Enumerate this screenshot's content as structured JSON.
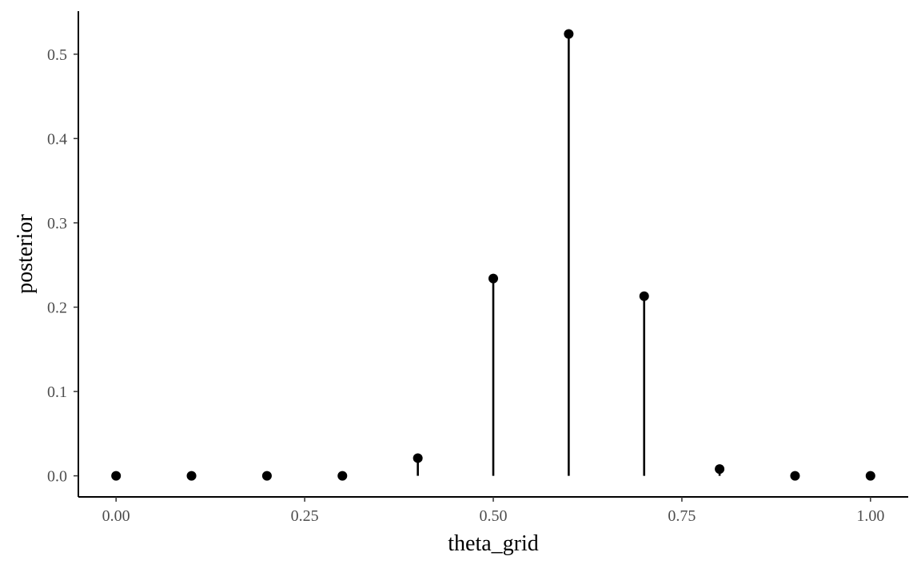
{
  "chart_data": {
    "type": "scatter",
    "title": "",
    "xlabel": "theta_grid",
    "ylabel": "posterior",
    "xlim": [
      -0.05,
      1.05
    ],
    "ylim": [
      -0.025,
      0.551
    ],
    "grid": false,
    "x_ticks": [
      {
        "value": 0.0,
        "label": "0.00"
      },
      {
        "value": 0.25,
        "label": "0.25"
      },
      {
        "value": 0.5,
        "label": "0.50"
      },
      {
        "value": 0.75,
        "label": "0.75"
      },
      {
        "value": 1.0,
        "label": "1.00"
      }
    ],
    "y_ticks": [
      {
        "value": 0.0,
        "label": "0.0"
      },
      {
        "value": 0.1,
        "label": "0.1"
      },
      {
        "value": 0.2,
        "label": "0.2"
      },
      {
        "value": 0.3,
        "label": "0.3"
      },
      {
        "value": 0.4,
        "label": "0.4"
      },
      {
        "value": 0.5,
        "label": "0.5"
      }
    ],
    "x": [
      0.0,
      0.1,
      0.2,
      0.3,
      0.4,
      0.5,
      0.6,
      0.7,
      0.8,
      0.9,
      1.0
    ],
    "y": [
      0.0,
      0.0,
      0.0,
      0.0,
      0.021,
      0.234,
      0.524,
      0.213,
      0.008,
      0.0,
      0.0
    ],
    "mark_style": "lollipop"
  }
}
